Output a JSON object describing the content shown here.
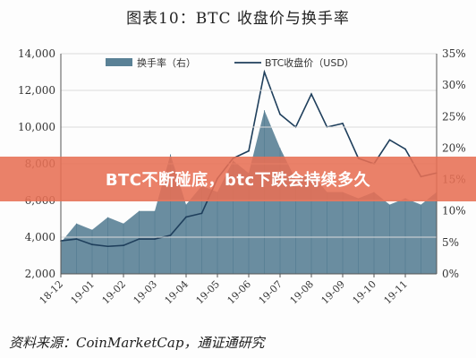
{
  "figure": {
    "title": "图表10：BTC 收盘价与换手率",
    "source": "资料来源：CoinMarketCap，通证通研究"
  },
  "banner": {
    "text": "BTC不断碰底，btc下跌会持续多久"
  },
  "colors": {
    "turnover": "#5a8196",
    "price": "#1f3f5c",
    "banner": "#e77054"
  },
  "chart_data": {
    "type": "bar+line",
    "x_ticks": [
      "18-12",
      "19-01",
      "19-02",
      "19-03",
      "19-04",
      "19-05",
      "19-06",
      "19-07",
      "19-08",
      "19-09",
      "19-10",
      "19-11"
    ],
    "y_left": {
      "ticks": [
        "2,000",
        "4,000",
        "6,000",
        "8,000",
        "10,000",
        "12,000",
        "14,000"
      ],
      "range": [
        2000,
        14000
      ]
    },
    "y_right": {
      "ticks": [
        "0%",
        "5%",
        "10%",
        "15%",
        "20%",
        "25%",
        "30%",
        "35%"
      ],
      "range": [
        0,
        35
      ]
    },
    "legend": {
      "position": "top-center"
    },
    "series": [
      {
        "name": "换手率（右）",
        "kind": "bar",
        "axis": "right",
        "x": [
          "18-12",
          "18-12",
          "19-01",
          "19-01",
          "19-02",
          "19-02",
          "19-03",
          "19-03",
          "19-04",
          "19-04",
          "19-05",
          "19-05",
          "19-06",
          "19-06",
          "19-07",
          "19-07",
          "19-08",
          "19-08",
          "19-09",
          "19-09",
          "19-10",
          "19-10",
          "19-11",
          "19-11",
          "19-12"
        ],
        "values": [
          5,
          8,
          7,
          9,
          8,
          10,
          10,
          19,
          11,
          14,
          13,
          18,
          16,
          26,
          20,
          15,
          16,
          13,
          13,
          12,
          13,
          11,
          12,
          11,
          13
        ]
      },
      {
        "name": "BTC收盘价（USD）",
        "kind": "line",
        "axis": "left",
        "x": [
          "18-12",
          "18-12",
          "19-01",
          "19-01",
          "19-02",
          "19-02",
          "19-03",
          "19-03",
          "19-04",
          "19-04",
          "19-05",
          "19-05",
          "19-06",
          "19-06",
          "19-07",
          "19-07",
          "19-08",
          "19-08",
          "19-09",
          "19-09",
          "19-10",
          "19-10",
          "19-11",
          "19-11",
          "19-12"
        ],
        "values": [
          3800,
          3900,
          3600,
          3500,
          3550,
          3900,
          3900,
          4100,
          5100,
          5300,
          7200,
          8300,
          8700,
          13000,
          10700,
          10000,
          11800,
          10000,
          10200,
          8300,
          8000,
          9300,
          8800,
          7300,
          7500
        ]
      }
    ]
  }
}
